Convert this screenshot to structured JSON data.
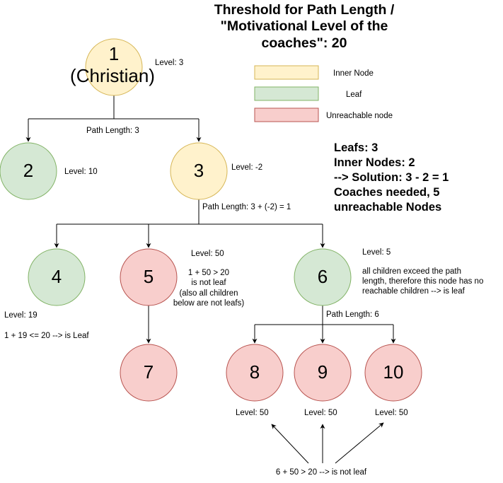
{
  "title": {
    "line1": "Threshold for Path Length /",
    "line2": "\"Motivational Level of the",
    "line3": "coaches\": 20"
  },
  "legend": {
    "inner": "Inner Node",
    "leaf": "Leaf",
    "unreachable": "Unreachable node",
    "colors": {
      "inner_fill": "#fff2cc",
      "leaf_fill": "#d5e8d4",
      "unreachable_fill": "#f8cecc"
    }
  },
  "nodes": {
    "n1": {
      "line1": "1",
      "line2": "(Christian)",
      "type": "inner"
    },
    "n2": {
      "label": "2",
      "type": "leaf"
    },
    "n3": {
      "label": "3",
      "type": "inner"
    },
    "n4": {
      "label": "4",
      "type": "leaf"
    },
    "n5": {
      "label": "5",
      "type": "unreachable"
    },
    "n6": {
      "label": "6",
      "type": "leaf"
    },
    "n7": {
      "label": "7",
      "type": "unreachable"
    },
    "n8": {
      "label": "8",
      "type": "unreachable"
    },
    "n9": {
      "label": "9",
      "type": "unreachable"
    },
    "n10": {
      "label": "10",
      "type": "unreachable"
    }
  },
  "levels": {
    "n1": "Level: 3",
    "n2": "Level: 10",
    "n3": "Level: -2",
    "n4": "Level: 19",
    "n5": "Level: 50",
    "n6": "Level: 5",
    "n8": "Level: 50",
    "n9": "Level: 50",
    "n10": "Level: 50"
  },
  "path_lengths": {
    "from_n1": "Path Length: 3",
    "from_n3": "Path Length: 3 + (-2) = 1",
    "from_n6": "Path Length: 6"
  },
  "notes": {
    "n4": "1 + 19 <= 20 --> is Leaf",
    "n5": [
      "1 + 50 > 20",
      "is not leaf",
      "(also all children",
      "below are not leafs)"
    ],
    "n6": [
      "all children exceed the path",
      "length, therefore this node has no",
      "reachable children --> is leaf"
    ],
    "bottom": "6 + 50 > 20 --> is not leaf"
  },
  "summary": {
    "line1": "Leafs: 3",
    "line2": "Inner Nodes: 2",
    "line3": "--> Solution: 3 - 2 = 1",
    "line4": "Coaches needed, 5",
    "line5": "unreachable Nodes"
  }
}
